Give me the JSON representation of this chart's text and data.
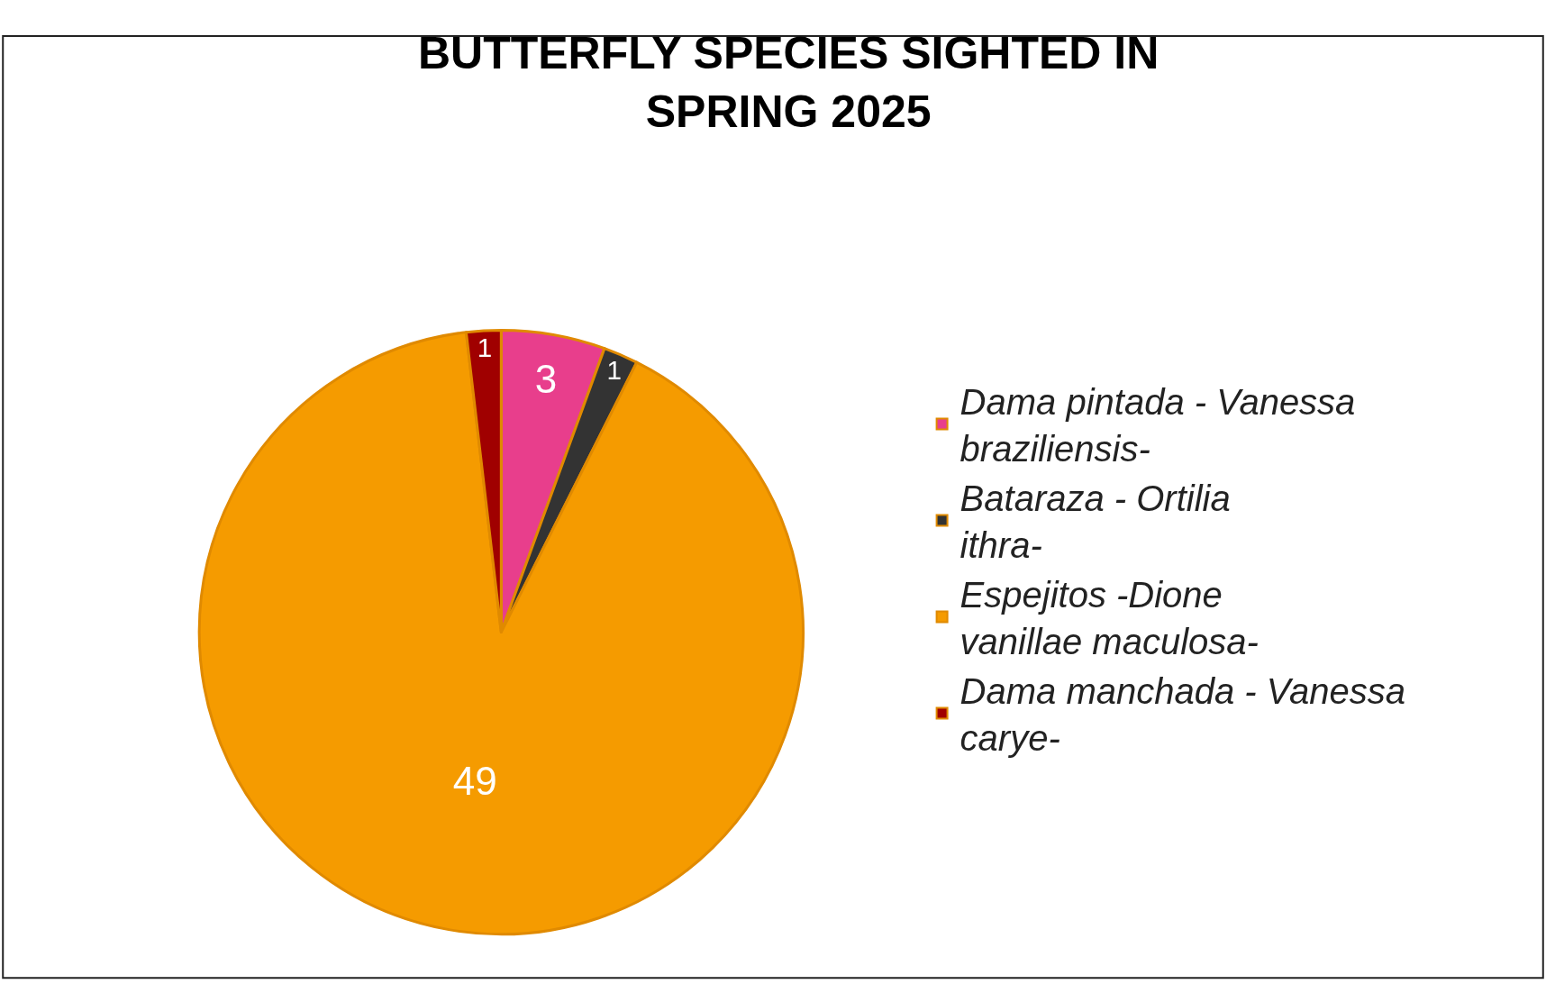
{
  "chart_data": {
    "type": "pie",
    "title": "BUTTERFLY SPECIES SIGHTED IN SPRING 2025",
    "categories": [
      "Dama pintada - Vanessa braziliensis-",
      "Bataraza - Ortilia ithra-",
      "Espejitos -Dione vanillae maculosa-",
      "Dama manchada - Vanessa carye-"
    ],
    "values": [
      3,
      1,
      49,
      1
    ],
    "colors": [
      "#e83e8c",
      "#333333",
      "#f59b00",
      "#a00000"
    ],
    "data_labels": true,
    "legend": "right"
  }
}
